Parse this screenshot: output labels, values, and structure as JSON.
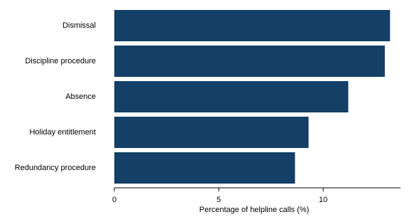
{
  "chart_data": {
    "type": "barh",
    "x_label": "Percentage of helpline calls (%)",
    "categories": [
      "Dismissal",
      "Discipline procedure",
      "Absence",
      "Holiday entitlement",
      "Redundancy procedure"
    ],
    "values": [
      13.2,
      12.95,
      11.2,
      9.3,
      8.65
    ],
    "color": "#143f66",
    "xlim": [
      0,
      13.7
    ],
    "xticks": [
      0,
      5,
      10
    ],
    "grid": false
  }
}
